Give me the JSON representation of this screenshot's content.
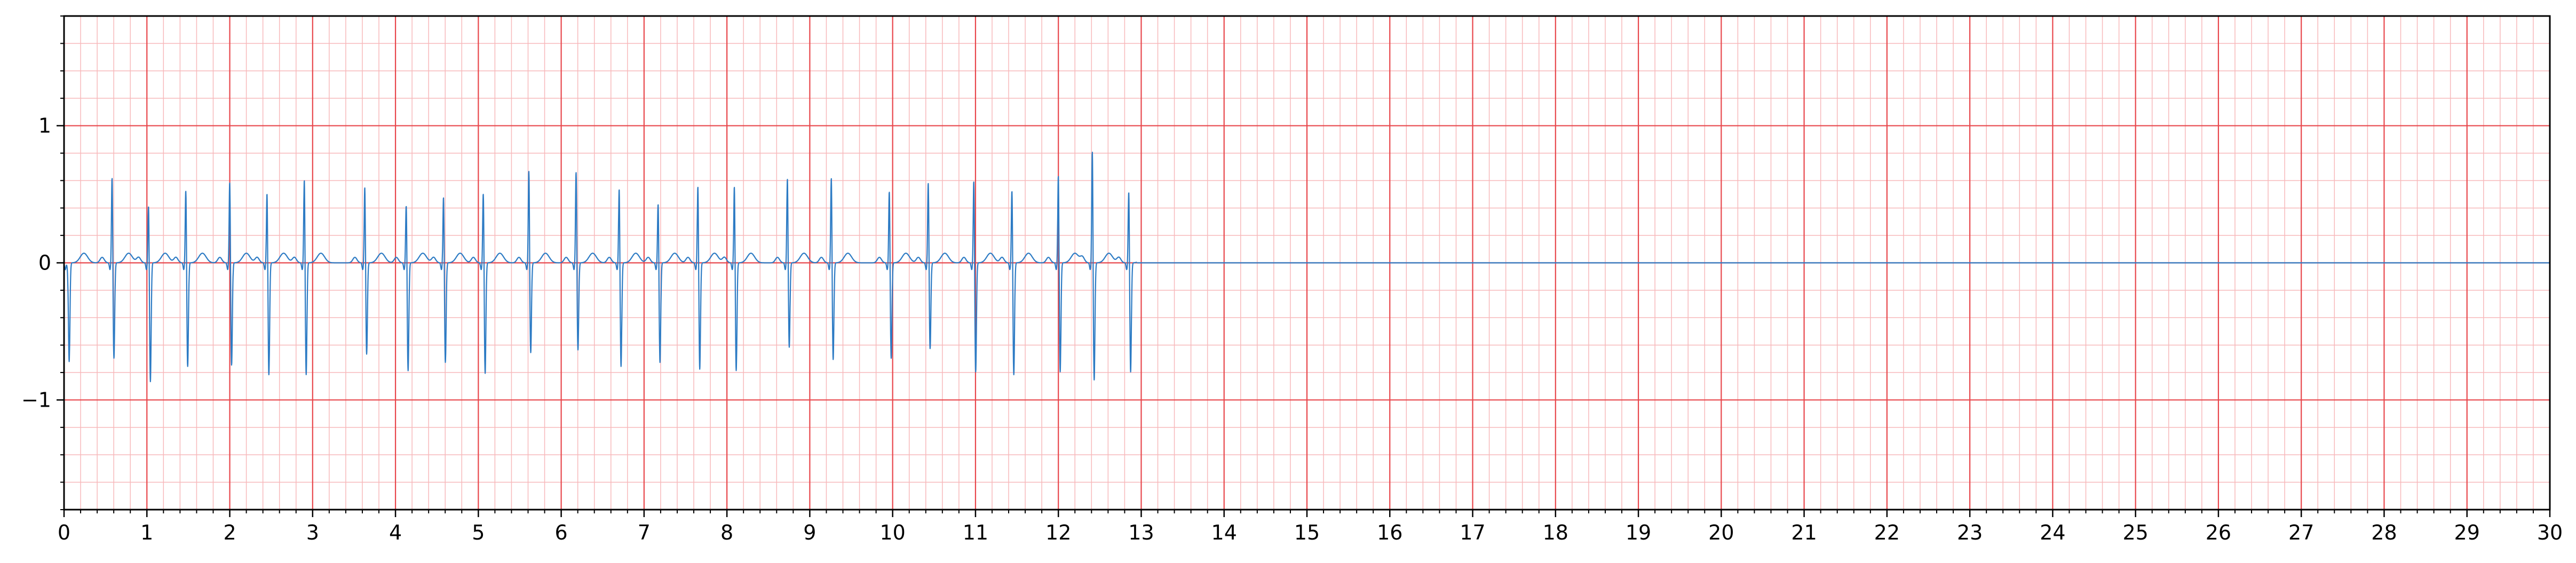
{
  "chart_data": {
    "type": "line",
    "title": "",
    "xlabel": "",
    "ylabel": "",
    "xlim": [
      0,
      30
    ],
    "ylim": [
      -1.8,
      1.8
    ],
    "grid": {
      "major_x_step": 1,
      "major_y_step": 1,
      "minor_x_step": 0.2,
      "minor_y_step": 0.2,
      "major_color": "#e8474c",
      "minor_color": "#f7b9bb"
    },
    "x_ticks": [
      0,
      1,
      2,
      3,
      4,
      5,
      6,
      7,
      8,
      9,
      10,
      11,
      12,
      13,
      14,
      15,
      16,
      17,
      18,
      19,
      20,
      21,
      22,
      23,
      24,
      25,
      26,
      27,
      28,
      29,
      30
    ],
    "x_tick_labels": [
      "0",
      "1",
      "2",
      "3",
      "4",
      "5",
      "6",
      "7",
      "8",
      "9",
      "10",
      "11",
      "12",
      "13",
      "14",
      "15",
      "16",
      "17",
      "18",
      "19",
      "20",
      "21",
      "22",
      "23",
      "24",
      "25",
      "26",
      "27",
      "28",
      "29",
      "30"
    ],
    "y_ticks": [
      -1,
      0,
      1
    ],
    "y_tick_labels": [
      "−1",
      "0",
      "1"
    ],
    "signal_end": 12.95,
    "series": [
      {
        "color": "#2d7bc4",
        "baseline_after_end": 0,
        "beats": [
          {
            "t": 0.04,
            "r": -0.02,
            "s": -0.72
          },
          {
            "t": 0.58,
            "r": 0.65,
            "s": -0.7
          },
          {
            "t": 1.02,
            "r": 0.45,
            "s": -0.87
          },
          {
            "t": 1.47,
            "r": 0.56,
            "s": -0.76
          },
          {
            "t": 2.0,
            "r": 0.62,
            "s": -0.75
          },
          {
            "t": 2.45,
            "r": 0.54,
            "s": -0.82
          },
          {
            "t": 2.9,
            "r": 0.64,
            "s": -0.82
          },
          {
            "t": 3.63,
            "r": 0.58,
            "s": -0.67
          },
          {
            "t": 4.13,
            "r": 0.45,
            "s": -0.79
          },
          {
            "t": 4.58,
            "r": 0.51,
            "s": -0.73
          },
          {
            "t": 5.06,
            "r": 0.54,
            "s": -0.81
          },
          {
            "t": 5.61,
            "r": 0.7,
            "s": -0.66
          },
          {
            "t": 6.18,
            "r": 0.69,
            "s": -0.64
          },
          {
            "t": 6.7,
            "r": 0.57,
            "s": -0.76
          },
          {
            "t": 7.17,
            "r": 0.46,
            "s": -0.73
          },
          {
            "t": 7.65,
            "r": 0.59,
            "s": -0.78
          },
          {
            "t": 8.09,
            "r": 0.59,
            "s": -0.79
          },
          {
            "t": 8.73,
            "r": 0.64,
            "s": -0.62
          },
          {
            "t": 9.26,
            "r": 0.65,
            "s": -0.71
          },
          {
            "t": 9.96,
            "r": 0.55,
            "s": -0.7
          },
          {
            "t": 10.43,
            "r": 0.61,
            "s": -0.63
          },
          {
            "t": 10.98,
            "r": 0.63,
            "s": -0.8
          },
          {
            "t": 11.44,
            "r": 0.56,
            "s": -0.82
          },
          {
            "t": 12.0,
            "r": 0.67,
            "s": -0.8
          },
          {
            "t": 12.41,
            "r": 0.85,
            "s": -0.86
          },
          {
            "t": 12.85,
            "r": 0.55,
            "s": -0.8
          }
        ]
      }
    ]
  }
}
